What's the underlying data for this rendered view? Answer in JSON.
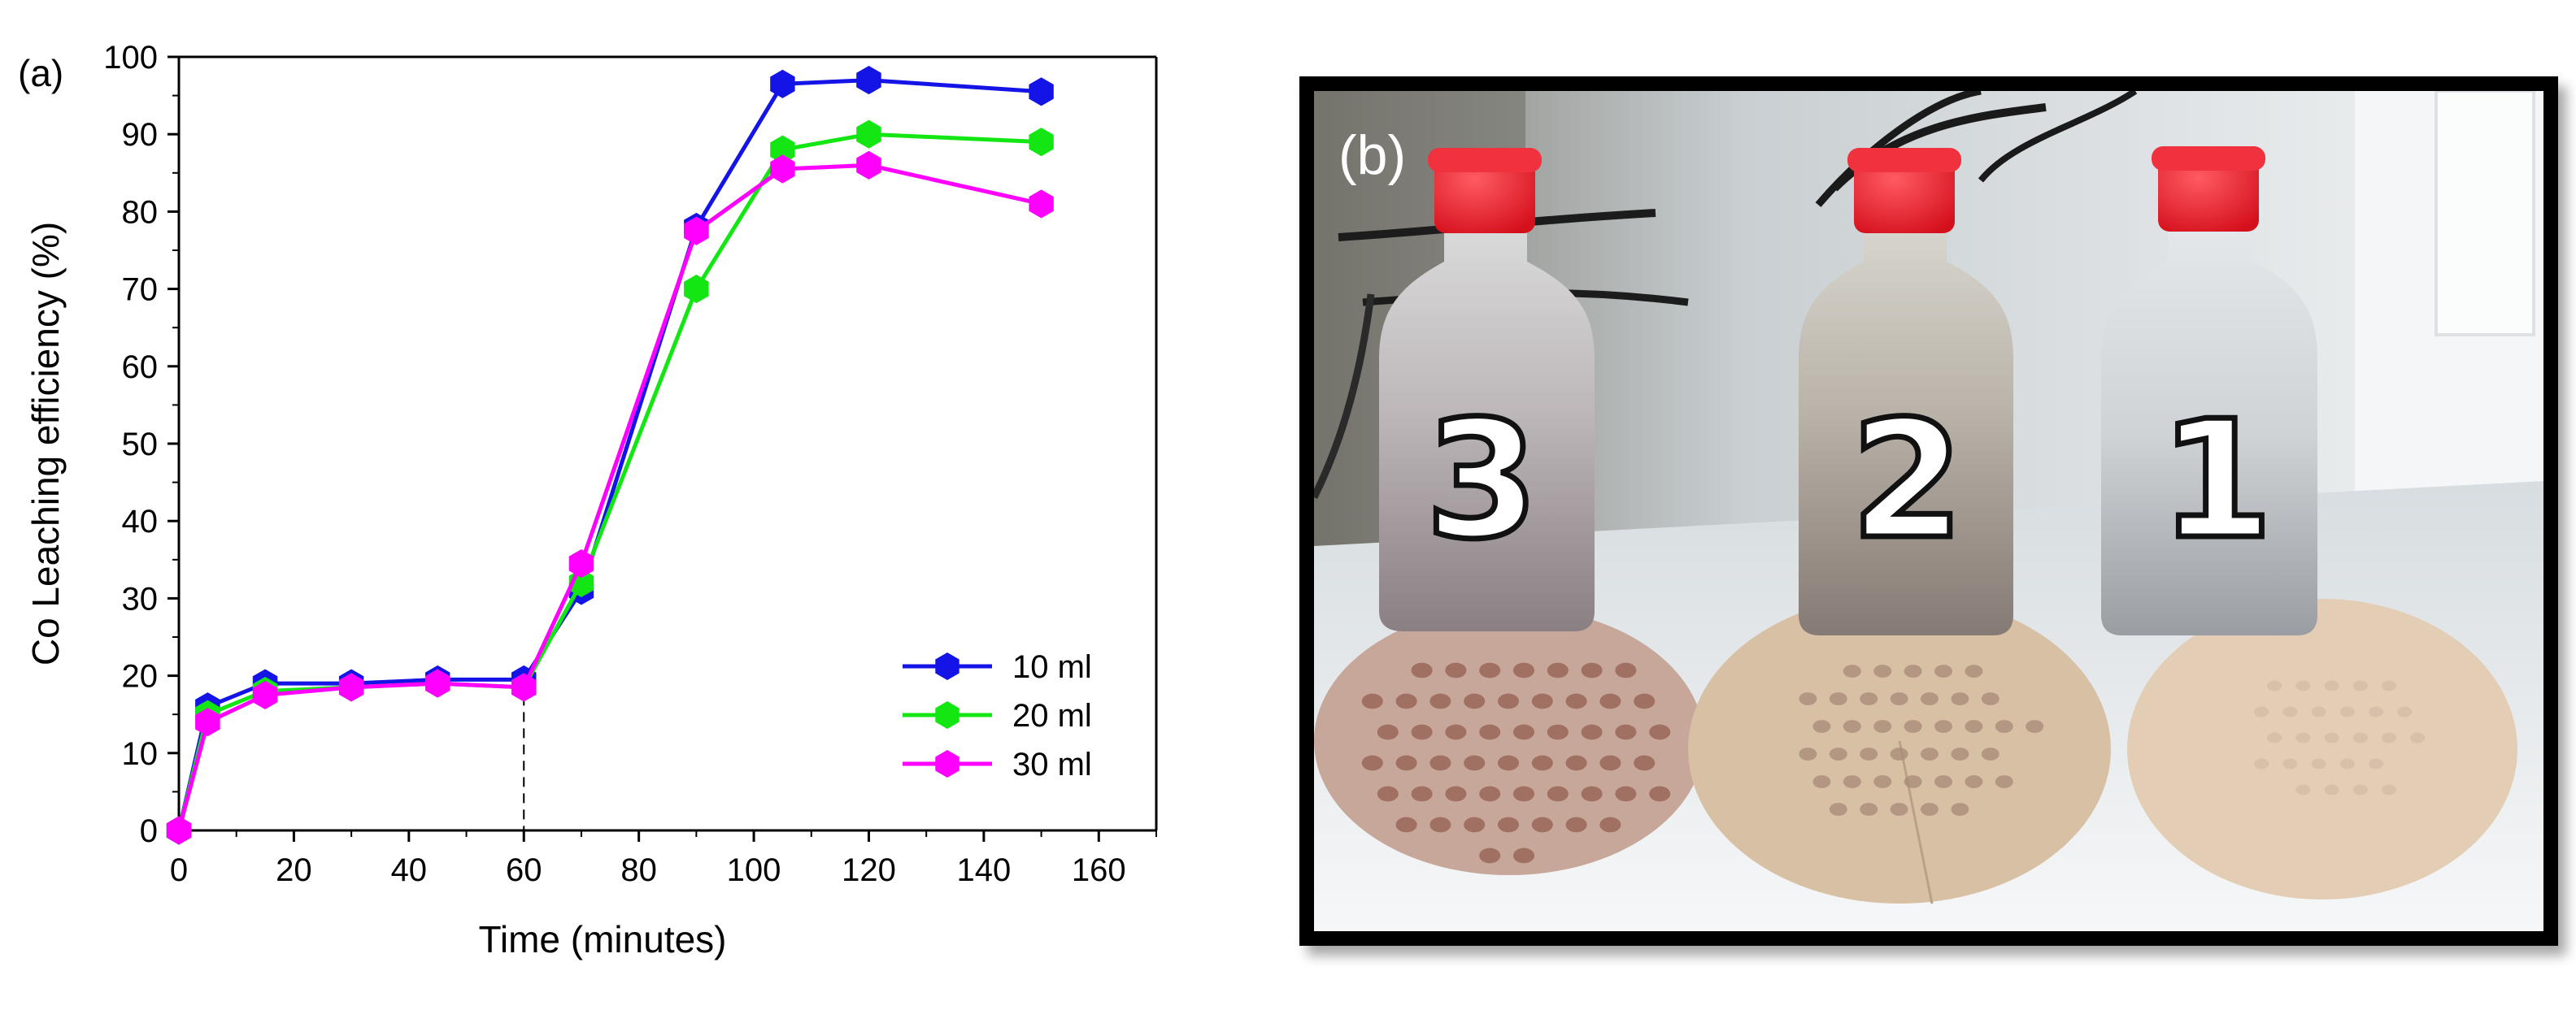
{
  "chart_data": {
    "panel_label": "(a)",
    "type": "line",
    "xlabel": "Time (minutes)",
    "ylabel": "Co Leaching efficiency (%)",
    "xlim": [
      0,
      170
    ],
    "ylim": [
      0,
      100
    ],
    "xticks": [
      0,
      20,
      40,
      60,
      80,
      100,
      120,
      140,
      160
    ],
    "yticks": [
      0,
      10,
      20,
      30,
      40,
      50,
      60,
      70,
      80,
      90,
      100
    ],
    "legend_position": "lower-right",
    "reference_line_x": 60,
    "x": [
      0,
      5,
      15,
      30,
      45,
      60,
      70,
      90,
      105,
      120,
      150
    ],
    "series": [
      {
        "name": "10 ml",
        "color": "#1414e6",
        "values": [
          0,
          16,
          19,
          19,
          19.5,
          19.5,
          31,
          78,
          96.5,
          97,
          95.5
        ]
      },
      {
        "name": "20 ml",
        "color": "#14e614",
        "values": [
          0,
          15,
          18,
          18.5,
          19,
          18.5,
          32,
          70,
          88,
          90,
          89
        ]
      },
      {
        "name": "30 ml",
        "color": "#ff00ff",
        "values": [
          0,
          14,
          17.5,
          18.5,
          19,
          18.5,
          34.5,
          77.5,
          85.5,
          86,
          81
        ]
      }
    ]
  },
  "photo": {
    "panel_label": "(b)",
    "bottles": [
      {
        "number": "3"
      },
      {
        "number": "2"
      },
      {
        "number": "1"
      }
    ]
  }
}
